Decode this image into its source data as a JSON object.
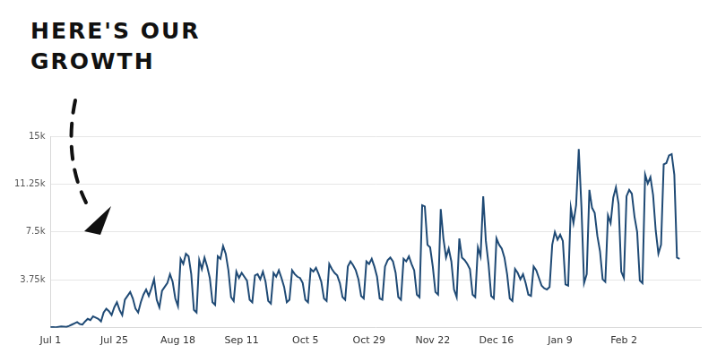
{
  "chart_data": {
    "type": "line",
    "annotation": "HERE'S OUR GROWTH",
    "categories": [
      "Jul 1",
      null,
      null,
      null,
      null,
      null,
      null,
      null,
      null,
      null,
      null,
      null,
      null,
      null,
      null,
      null,
      null,
      null,
      null,
      null,
      null,
      null,
      null,
      null,
      "Jul 25",
      null,
      null,
      null,
      null,
      null,
      null,
      null,
      null,
      null,
      null,
      null,
      null,
      null,
      null,
      null,
      null,
      null,
      null,
      null,
      null,
      null,
      null,
      null,
      "Aug 18",
      null,
      null,
      null,
      null,
      null,
      null,
      null,
      null,
      null,
      null,
      null,
      null,
      null,
      null,
      null,
      null,
      null,
      null,
      null,
      null,
      null,
      null,
      null,
      "Sep 11",
      null,
      null,
      null,
      null,
      null,
      null,
      null,
      null,
      null,
      null,
      null,
      null,
      null,
      null,
      null,
      null,
      null,
      null,
      null,
      null,
      null,
      null,
      null,
      "Oct 5",
      null,
      null,
      null,
      null,
      null,
      null,
      null,
      null,
      null,
      null,
      null,
      null,
      null,
      null,
      null,
      null,
      null,
      null,
      null,
      null,
      null,
      null,
      null,
      "Oct 29",
      null,
      null,
      null,
      null,
      null,
      null,
      null,
      null,
      null,
      null,
      null,
      null,
      null,
      null,
      null,
      null,
      null,
      null,
      null,
      null,
      null,
      null,
      null,
      "Nov 22",
      null,
      null,
      null,
      null,
      null,
      null,
      null,
      null,
      null,
      null,
      null,
      null,
      null,
      null,
      null,
      null,
      null,
      null,
      null,
      null,
      null,
      null,
      null,
      "Dec 16",
      null,
      null,
      null,
      null,
      null,
      null,
      null,
      null,
      null,
      null,
      null,
      null,
      null,
      null,
      null,
      null,
      null,
      null,
      null,
      null,
      null,
      null,
      null,
      "Jan 9",
      null,
      null,
      null,
      null,
      null,
      null,
      null,
      null,
      null,
      null,
      null,
      null,
      null,
      null,
      null,
      null,
      null,
      null,
      null,
      null,
      null,
      null,
      null,
      "Feb 2",
      null,
      null,
      null,
      null,
      null,
      null,
      null,
      null,
      null,
      null,
      null,
      null,
      null,
      null,
      null,
      null,
      null,
      null,
      null,
      null,
      null,
      null,
      null,
      null,
      null,
      null,
      null,
      null,
      null
    ],
    "values": [
      50,
      60,
      40,
      80,
      100,
      90,
      70,
      150,
      250,
      350,
      450,
      300,
      250,
      500,
      700,
      600,
      900,
      800,
      700,
      500,
      1200,
      1500,
      1300,
      1000,
      1600,
      2000,
      1400,
      1000,
      2200,
      2500,
      2800,
      2300,
      1500,
      1200,
      2000,
      2600,
      3000,
      2500,
      3100,
      3800,
      2200,
      1600,
      2900,
      3200,
      3500,
      4200,
      3600,
      2300,
      1700,
      5400,
      5000,
      5800,
      5600,
      4200,
      1400,
      1200,
      5300,
      4600,
      5500,
      4800,
      3900,
      2000,
      1800,
      5600,
      5400,
      6400,
      5800,
      4500,
      2400,
      2100,
      4400,
      3900,
      4300,
      4000,
      3700,
      2200,
      2000,
      4100,
      4200,
      3800,
      4400,
      3600,
      2100,
      1900,
      4300,
      4000,
      4500,
      3900,
      3200,
      2000,
      2200,
      4500,
      4200,
      4000,
      3900,
      3500,
      2200,
      2000,
      4600,
      4400,
      4700,
      4200,
      3600,
      2300,
      2100,
      5000,
      4600,
      4300,
      4100,
      3500,
      2400,
      2200,
      4800,
      5200,
      4900,
      4500,
      3800,
      2500,
      2300,
      5200,
      5000,
      5400,
      4800,
      4000,
      2300,
      2200,
      4800,
      5300,
      5500,
      5200,
      4300,
      2400,
      2200,
      5400,
      5200,
      5600,
      5000,
      4500,
      2600,
      2400,
      9600,
      9500,
      6500,
      6300,
      4800,
      2800,
      2600,
      9300,
      7000,
      5500,
      6200,
      5200,
      3000,
      2400,
      7000,
      5500,
      5300,
      5000,
      4600,
      2600,
      2400,
      6300,
      5600,
      10300,
      6800,
      5000,
      2500,
      2300,
      7000,
      6500,
      6200,
      5500,
      4200,
      2300,
      2100,
      4600,
      4300,
      3800,
      4200,
      3500,
      2600,
      2500,
      4800,
      4500,
      3900,
      3300,
      3100,
      3000,
      3200,
      6500,
      7500,
      6900,
      7300,
      6800,
      3400,
      3300,
      9400,
      8200,
      9600,
      14000,
      9500,
      3500,
      4200,
      10800,
      9400,
      9000,
      7200,
      6000,
      3800,
      3600,
      8800,
      8200,
      10200,
      11000,
      9700,
      4400,
      3900,
      10300,
      10800,
      10500,
      8700,
      7500,
      3700,
      3500,
      12000,
      11300,
      11800,
      10400,
      7600,
      5800,
      6500,
      12800,
      12900,
      13500,
      13600,
      12000,
      5500,
      5400,
      null,
      null,
      null,
      null,
      null,
      null,
      null,
      null
    ],
    "color": "#1f4a75",
    "ylim": [
      0,
      15000
    ],
    "yticks": [
      {
        "value": 3750,
        "label": "3.75k"
      },
      {
        "value": 7500,
        "label": "7.5k"
      },
      {
        "value": 11250,
        "label": "11.25k"
      },
      {
        "value": 15000,
        "label": "15k"
      }
    ],
    "grid": true
  }
}
